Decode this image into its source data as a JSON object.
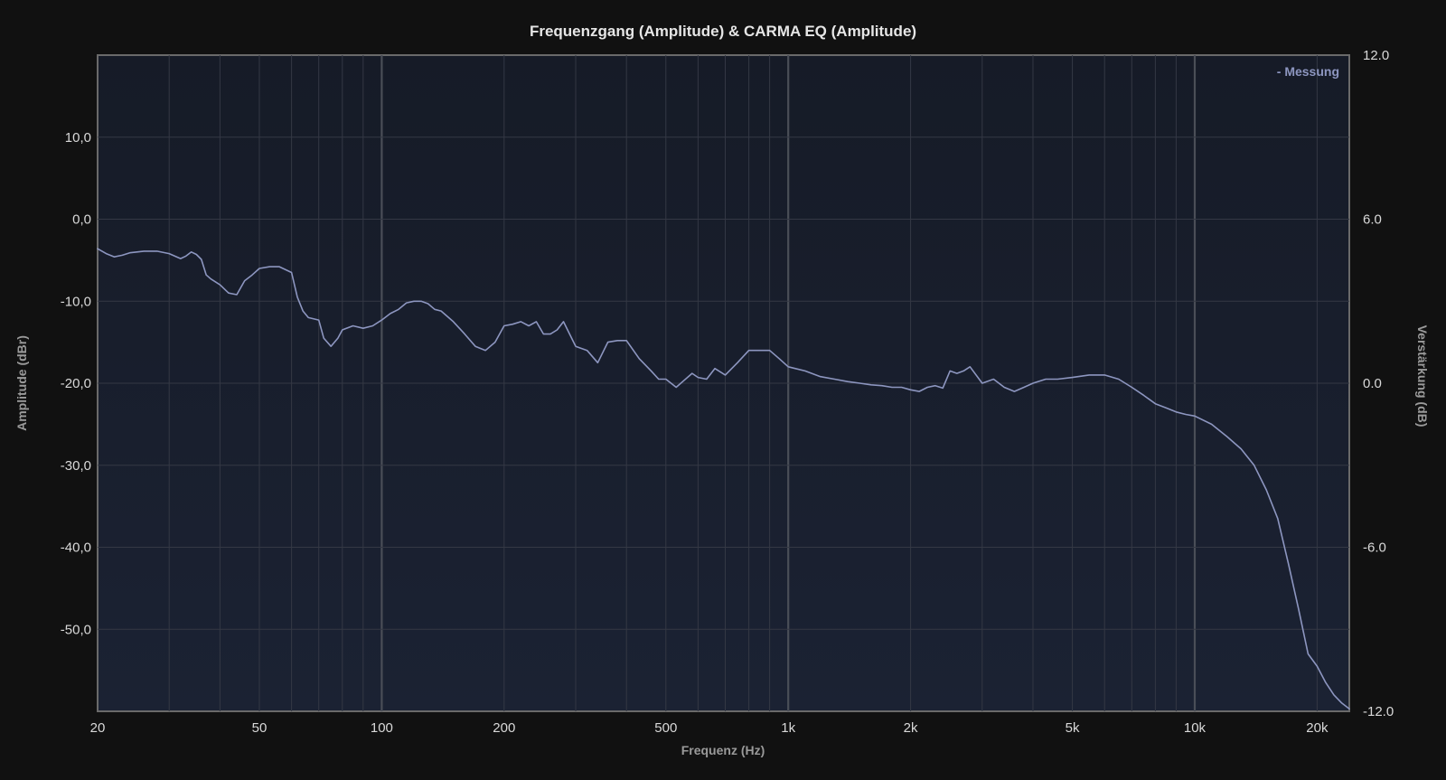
{
  "chart_data": {
    "type": "line",
    "title": "Frequenzgang (Amplitude) & CARMA EQ (Amplitude)",
    "xlabel": "Frequenz (Hz)",
    "ylabel": "Amplitude (dBr)",
    "y2label": "Verstärkung (dB)",
    "x_scale": "log",
    "xlim": [
      20,
      24000
    ],
    "ylim": [
      -60,
      20
    ],
    "y2lim": [
      -12,
      12
    ],
    "grid": true,
    "legend_position": "top-right",
    "x_ticks": [
      {
        "value": 20,
        "label": "20"
      },
      {
        "value": 50,
        "label": "50"
      },
      {
        "value": 100,
        "label": "100"
      },
      {
        "value": 200,
        "label": "200"
      },
      {
        "value": 500,
        "label": "500"
      },
      {
        "value": 1000,
        "label": "1k"
      },
      {
        "value": 2000,
        "label": "2k"
      },
      {
        "value": 5000,
        "label": "5k"
      },
      {
        "value": 10000,
        "label": "10k"
      },
      {
        "value": 20000,
        "label": "20k"
      }
    ],
    "y_ticks": [
      {
        "value": 10,
        "label": "10,0"
      },
      {
        "value": 0,
        "label": "0,0"
      },
      {
        "value": -10,
        "label": "-10,0"
      },
      {
        "value": -20,
        "label": "-20,0"
      },
      {
        "value": -30,
        "label": "-30,0"
      },
      {
        "value": -40,
        "label": "-40,0"
      },
      {
        "value": -50,
        "label": "-50,0"
      }
    ],
    "y2_ticks": [
      {
        "value": 12,
        "label": "12.0"
      },
      {
        "value": 6,
        "label": "6.0"
      },
      {
        "value": 0,
        "label": "0.0"
      },
      {
        "value": -6,
        "label": "-6.0"
      },
      {
        "value": -12,
        "label": "-12.0"
      }
    ],
    "series": [
      {
        "name": "Messung",
        "legend_label": "- Messung",
        "color": "#8d96c0",
        "x": [
          20,
          21,
          22,
          23,
          24,
          26,
          28,
          30,
          32,
          33,
          34,
          35,
          36,
          37,
          38,
          40,
          42,
          44,
          46,
          48,
          50,
          53,
          56,
          60,
          62,
          64,
          66,
          70,
          72,
          75,
          78,
          80,
          85,
          90,
          95,
          100,
          105,
          110,
          115,
          120,
          125,
          130,
          135,
          140,
          150,
          160,
          170,
          180,
          190,
          200,
          210,
          220,
          230,
          240,
          250,
          260,
          270,
          280,
          300,
          320,
          340,
          360,
          380,
          400,
          430,
          460,
          480,
          500,
          530,
          550,
          580,
          600,
          630,
          660,
          700,
          750,
          800,
          850,
          900,
          950,
          1000,
          1100,
          1200,
          1300,
          1400,
          1500,
          1600,
          1700,
          1800,
          1900,
          2000,
          2100,
          2200,
          2300,
          2400,
          2500,
          2600,
          2700,
          2800,
          3000,
          3200,
          3400,
          3600,
          3800,
          4000,
          4300,
          4600,
          5000,
          5500,
          6000,
          6500,
          7000,
          7500,
          8000,
          8500,
          9000,
          9500,
          10000,
          11000,
          12000,
          13000,
          14000,
          15000,
          16000,
          17000,
          18000,
          19000,
          20000,
          21000,
          22000,
          23000,
          24000
        ],
        "y": [
          -3.6,
          -4.2,
          -4.6,
          -4.4,
          -4.1,
          -3.9,
          -3.9,
          -4.2,
          -4.8,
          -4.5,
          -4.0,
          -4.3,
          -4.9,
          -6.8,
          -7.3,
          -8.0,
          -9.0,
          -9.2,
          -7.5,
          -6.8,
          -6.0,
          -5.8,
          -5.8,
          -6.5,
          -9.5,
          -11.2,
          -12.0,
          -12.3,
          -14.5,
          -15.5,
          -14.5,
          -13.5,
          -13.0,
          -13.3,
          -13.0,
          -12.3,
          -11.5,
          -11.0,
          -10.2,
          -10.0,
          -10.0,
          -10.3,
          -11.0,
          -11.2,
          -12.5,
          -14.0,
          -15.5,
          -16.0,
          -15.0,
          -13.0,
          -12.8,
          -12.5,
          -13.0,
          -12.5,
          -14.0,
          -14.0,
          -13.5,
          -12.5,
          -15.5,
          -16.0,
          -17.5,
          -15.0,
          -14.8,
          -14.8,
          -17.0,
          -18.5,
          -19.5,
          -19.5,
          -20.5,
          -19.8,
          -18.8,
          -19.3,
          -19.5,
          -18.2,
          -19.0,
          -17.5,
          -16.0,
          -16.0,
          -16.0,
          -17.0,
          -18.0,
          -18.5,
          -19.2,
          -19.5,
          -19.8,
          -20.0,
          -20.2,
          -20.3,
          -20.5,
          -20.5,
          -20.8,
          -21.0,
          -20.5,
          -20.3,
          -20.6,
          -18.5,
          -18.8,
          -18.5,
          -18.0,
          -20.0,
          -19.5,
          -20.5,
          -21.0,
          -20.5,
          -20.0,
          -19.5,
          -19.5,
          -19.3,
          -19.0,
          -19.0,
          -19.5,
          -20.5,
          -21.5,
          -22.5,
          -23.0,
          -23.5,
          -23.8,
          -24.0,
          -25.0,
          -26.5,
          -28.0,
          -30.0,
          -33.0,
          -36.5,
          -42.0,
          -47.5,
          -53.0,
          -54.5,
          -56.5,
          -58.0,
          -59.0,
          -59.7
        ]
      }
    ]
  }
}
